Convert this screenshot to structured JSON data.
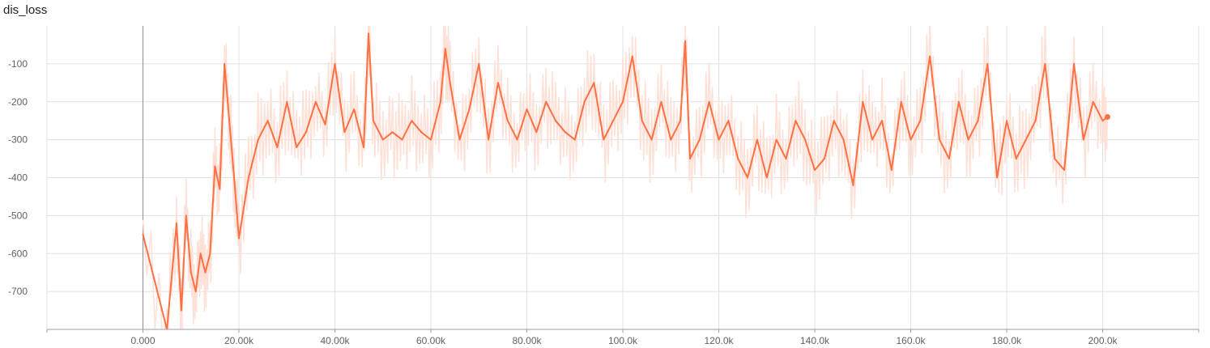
{
  "chart_data": {
    "type": "line",
    "title": "dis_loss",
    "xlabel": "",
    "ylabel": "",
    "xlim": [
      -20000,
      220000
    ],
    "ylim": [
      -800,
      0
    ],
    "x_ticks": [
      0,
      20000,
      40000,
      60000,
      80000,
      100000,
      120000,
      140000,
      160000,
      180000,
      200000
    ],
    "x_tick_labels": [
      "0.000",
      "20.00k",
      "40.00k",
      "60.00k",
      "80.00k",
      "100.0k",
      "120.0k",
      "140.0k",
      "160.0k",
      "180.0k",
      "200.0k"
    ],
    "y_ticks": [
      -100,
      -200,
      -300,
      -400,
      -500,
      -600,
      -700
    ],
    "y_tick_labels": [
      "-100",
      "-200",
      "-300",
      "-400",
      "-500",
      "-600",
      "-700"
    ],
    "grid": true,
    "colors": {
      "smoothed": "#ff7043",
      "raw": "#ffe0d6",
      "grid": "#e0e0e0",
      "axis": "#9e9e9e"
    },
    "series": [
      {
        "x": [
          0,
          5000,
          7000,
          8000,
          9000,
          10000,
          11000,
          12000,
          13000,
          14000,
          15000,
          16000,
          17000,
          18000,
          19000,
          20000,
          22000,
          24000,
          26000,
          28000,
          30000,
          32000,
          34000,
          36000,
          38000,
          40000,
          42000,
          44000,
          46000,
          47000,
          48000,
          50000,
          52000,
          54000,
          56000,
          58000,
          60000,
          62000,
          63000,
          64000,
          66000,
          68000,
          70000,
          72000,
          74000,
          76000,
          78000,
          80000,
          82000,
          84000,
          86000,
          88000,
          90000,
          92000,
          94000,
          96000,
          98000,
          100000,
          102000,
          104000,
          106000,
          108000,
          110000,
          112000,
          113000,
          114000,
          116000,
          118000,
          120000,
          122000,
          124000,
          126000,
          128000,
          130000,
          132000,
          134000,
          136000,
          138000,
          140000,
          142000,
          144000,
          146000,
          148000,
          150000,
          152000,
          154000,
          156000,
          158000,
          160000,
          162000,
          164000,
          166000,
          168000,
          170000,
          172000,
          174000,
          176000,
          178000,
          180000,
          182000,
          184000,
          186000,
          188000,
          190000,
          192000,
          194000,
          196000,
          198000,
          200000,
          201000
        ],
        "values": [
          -550,
          -800,
          -520,
          -750,
          -500,
          -650,
          -700,
          -600,
          -650,
          -600,
          -370,
          -430,
          -100,
          -250,
          -400,
          -560,
          -400,
          -300,
          -250,
          -320,
          -200,
          -320,
          -280,
          -200,
          -260,
          -100,
          -280,
          -220,
          -320,
          -20,
          -250,
          -300,
          -280,
          -300,
          -250,
          -280,
          -300,
          -200,
          -60,
          -150,
          -300,
          -220,
          -100,
          -300,
          -150,
          -250,
          -300,
          -220,
          -280,
          -200,
          -250,
          -280,
          -300,
          -200,
          -150,
          -300,
          -250,
          -200,
          -80,
          -250,
          -300,
          -200,
          -300,
          -250,
          -40,
          -350,
          -300,
          -200,
          -300,
          -250,
          -350,
          -400,
          -300,
          -400,
          -300,
          -350,
          -250,
          -300,
          -380,
          -350,
          -250,
          -300,
          -420,
          -200,
          -300,
          -250,
          -380,
          -200,
          -300,
          -250,
          -80,
          -300,
          -350,
          -200,
          -300,
          -250,
          -100,
          -400,
          -250,
          -350,
          -300,
          -250,
          -100,
          -350,
          -380,
          -100,
          -300,
          -200,
          -250,
          -240
        ],
        "name": ""
      }
    ]
  }
}
